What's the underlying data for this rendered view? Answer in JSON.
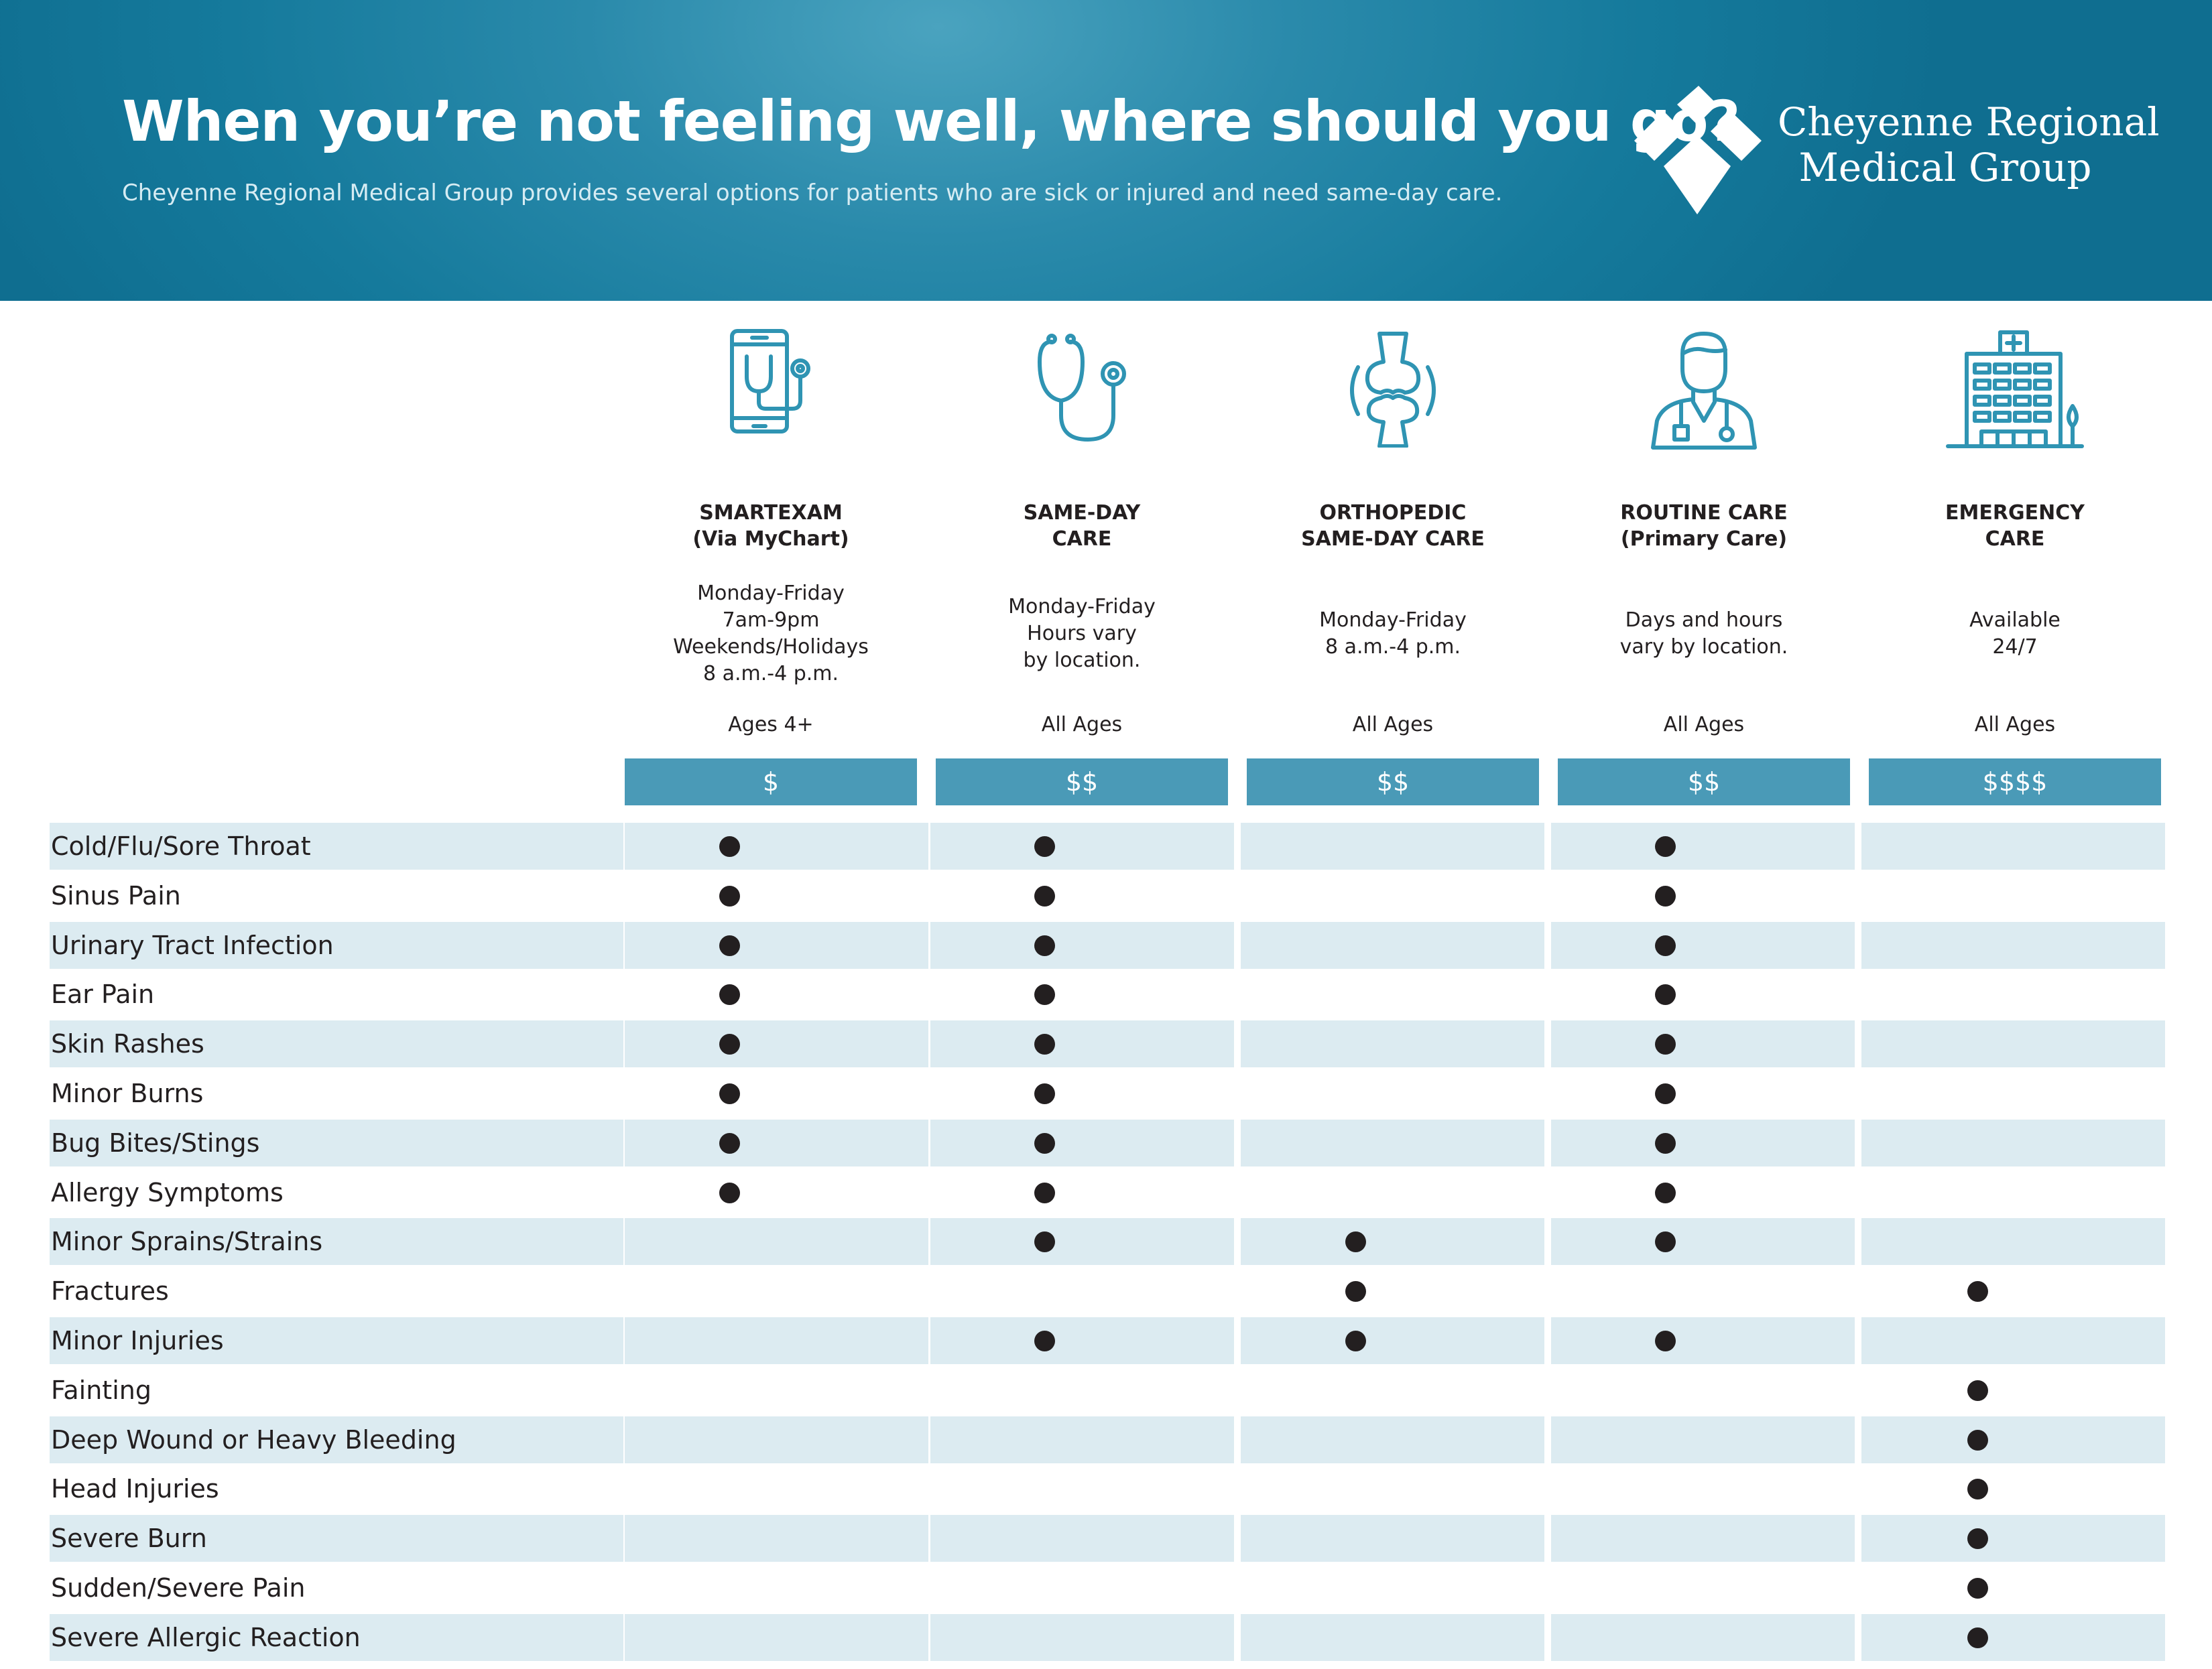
{
  "header": {
    "title": "When you’re not feeling well, where should you go?",
    "subtitle": "Cheyenne Regional Medical Group provides several options for patients who are sick or injured and need same-day care.",
    "logo_icon": "diamond-quadrant-logo-icon",
    "logo_line1": "Cheyenne Regional",
    "logo_line2": "Medical Group"
  },
  "columns": [
    {
      "icon": "smartphone-stethoscope-icon",
      "title1": "SMARTEXAM",
      "title2": "(Via MyChart)",
      "hours": [
        "Monday-Friday",
        "7am-9pm",
        "Weekends/Holidays",
        "8 a.m.-4 p.m."
      ],
      "ages": "Ages 4+",
      "cost": "$"
    },
    {
      "icon": "stethoscope-icon",
      "title1": "SAME-DAY",
      "title2": "CARE",
      "hours": [
        "Monday-Friday",
        "Hours vary",
        "by location."
      ],
      "ages": "All Ages",
      "cost": "$$"
    },
    {
      "icon": "knee-joint-icon",
      "title1": "ORTHOPEDIC",
      "title2": "SAME-DAY CARE",
      "hours": [
        "Monday-Friday",
        "8 a.m.-4 p.m."
      ],
      "ages": "All Ages",
      "cost": "$$"
    },
    {
      "icon": "doctor-icon",
      "title1": "ROUTINE CARE",
      "title2": "(Primary Care)",
      "hours": [
        "Days and hours",
        "vary by location."
      ],
      "ages": "All Ages",
      "cost": "$$"
    },
    {
      "icon": "hospital-building-icon",
      "title1": "EMERGENCY",
      "title2": "CARE",
      "hours": [
        "Available",
        "24/7"
      ],
      "ages": "All Ages",
      "cost": "$$$$"
    }
  ],
  "rows": [
    {
      "label": "Cold/Flu/Sore Throat",
      "marks": [
        true,
        true,
        false,
        true,
        false
      ]
    },
    {
      "label": "Sinus Pain",
      "marks": [
        true,
        true,
        false,
        true,
        false
      ]
    },
    {
      "label": "Urinary Tract Infection",
      "marks": [
        true,
        true,
        false,
        true,
        false
      ]
    },
    {
      "label": "Ear Pain",
      "marks": [
        true,
        true,
        false,
        true,
        false
      ]
    },
    {
      "label": "Skin Rashes",
      "marks": [
        true,
        true,
        false,
        true,
        false
      ]
    },
    {
      "label": "Minor Burns",
      "marks": [
        true,
        true,
        false,
        true,
        false
      ]
    },
    {
      "label": "Bug Bites/Stings",
      "marks": [
        true,
        true,
        false,
        true,
        false
      ]
    },
    {
      "label": "Allergy Symptoms",
      "marks": [
        true,
        true,
        false,
        true,
        false
      ]
    },
    {
      "label": "Minor Sprains/Strains",
      "marks": [
        false,
        true,
        true,
        true,
        false
      ]
    },
    {
      "label": "Fractures",
      "marks": [
        false,
        false,
        true,
        false,
        true
      ]
    },
    {
      "label": "Minor Injuries",
      "marks": [
        false,
        true,
        true,
        true,
        false
      ]
    },
    {
      "label": "Fainting",
      "marks": [
        false,
        false,
        false,
        false,
        true
      ]
    },
    {
      "label": "Deep Wound or Heavy Bleeding",
      "marks": [
        false,
        false,
        false,
        false,
        true
      ]
    },
    {
      "label": "Head Injuries",
      "marks": [
        false,
        false,
        false,
        false,
        true
      ]
    },
    {
      "label": "Severe Burn",
      "marks": [
        false,
        false,
        false,
        false,
        true
      ]
    },
    {
      "label": "Sudden/Severe Pain",
      "marks": [
        false,
        false,
        false,
        false,
        true
      ]
    },
    {
      "label": "Severe Allergic Reaction",
      "marks": [
        false,
        false,
        false,
        false,
        true
      ]
    }
  ],
  "colors": {
    "brand": "#157a9c",
    "accent": "#4a9ab7",
    "row_shade": "#dcebf1",
    "icon": "#2f94b3",
    "dot": "#231f20"
  }
}
